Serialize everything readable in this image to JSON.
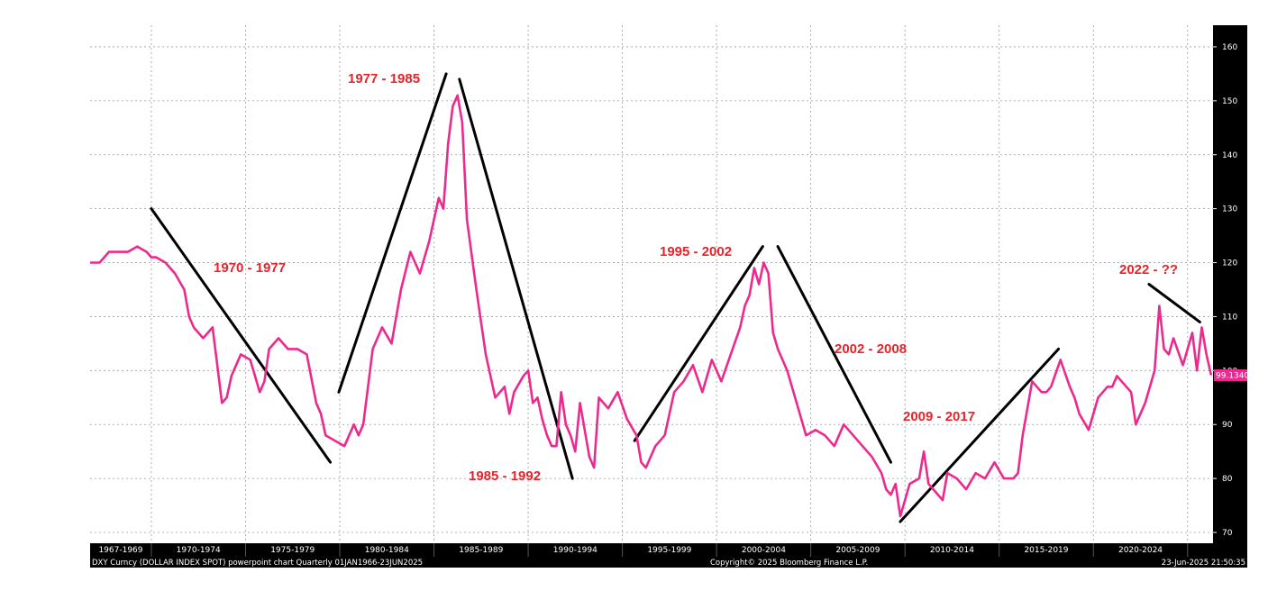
{
  "chart_data": {
    "type": "line",
    "title": "",
    "xlabel": "",
    "ylabel": "",
    "ylim": [
      68,
      164
    ],
    "xlim": [
      1966.0,
      2025.6
    ],
    "grid": true,
    "y_ticks": [
      70,
      80,
      90,
      100,
      110,
      120,
      130,
      140,
      150,
      160
    ],
    "x_tick_labels": [
      "1967-1969",
      "1970-1974",
      "1975-1979",
      "1980-1984",
      "1985-1989",
      "1990-1994",
      "1995-1999",
      "2000-2004",
      "2005-2009",
      "2010-2014",
      "2015-2019",
      "2020-2024"
    ],
    "line_color": "#ec2a8e",
    "last_value_label": "99.1340",
    "last_value": 99.134,
    "series": [
      {
        "name": "DXY Curncy (DOLLAR INDEX SPOT)",
        "x": [
          1966.0,
          1966.5,
          1967.0,
          1967.5,
          1968.0,
          1968.5,
          1969.0,
          1969.25,
          1969.5,
          1970.0,
          1970.5,
          1971.0,
          1971.25,
          1971.5,
          1972.0,
          1972.5,
          1973.0,
          1973.25,
          1973.5,
          1973.75,
          1974.0,
          1974.5,
          1975.0,
          1975.25,
          1975.5,
          1976.0,
          1976.5,
          1977.0,
          1977.5,
          1978.0,
          1978.25,
          1978.5,
          1979.0,
          1979.5,
          1980.0,
          1980.25,
          1980.5,
          1981.0,
          1981.5,
          1982.0,
          1982.5,
          1983.0,
          1983.5,
          1984.0,
          1984.5,
          1984.75,
          1985.0,
          1985.25,
          1985.5,
          1985.75,
          1986.0,
          1986.5,
          1987.0,
          1987.5,
          1988.0,
          1988.25,
          1988.5,
          1989.0,
          1989.25,
          1989.5,
          1989.75,
          1990.0,
          1990.25,
          1990.5,
          1990.75,
          1991.0,
          1991.25,
          1991.5,
          1991.75,
          1992.0,
          1992.5,
          1992.75,
          1993.0,
          1993.5,
          1994.0,
          1994.5,
          1995.0,
          1995.25,
          1995.5,
          1996.0,
          1996.5,
          1997.0,
          1997.5,
          1998.0,
          1998.5,
          1999.0,
          1999.5,
          2000.0,
          2000.5,
          2000.75,
          2001.0,
          2001.25,
          2001.5,
          2001.75,
          2002.0,
          2002.25,
          2002.5,
          2003.0,
          2003.5,
          2004.0,
          2004.5,
          2005.0,
          2005.5,
          2006.0,
          2006.5,
          2007.0,
          2007.5,
          2008.0,
          2008.25,
          2008.5,
          2008.75,
          2009.0,
          2009.25,
          2009.5,
          2010.0,
          2010.25,
          2010.5,
          2011.0,
          2011.25,
          2011.5,
          2012.0,
          2012.5,
          2013.0,
          2013.5,
          2014.0,
          2014.5,
          2015.0,
          2015.25,
          2015.5,
          2016.0,
          2016.5,
          2016.75,
          2017.0,
          2017.5,
          2018.0,
          2018.25,
          2018.5,
          2019.0,
          2019.5,
          2020.0,
          2020.25,
          2020.5,
          2021.0,
          2021.25,
          2021.5,
          2022.0,
          2022.5,
          2022.75,
          2023.0,
          2023.25,
          2023.5,
          2024.0,
          2024.25,
          2024.5,
          2024.75,
          2025.0,
          2025.25,
          2025.5
        ],
        "values": [
          120,
          120,
          122,
          122,
          122,
          123,
          122,
          121,
          121,
          120,
          118,
          115,
          110,
          108,
          106,
          108,
          94,
          95,
          99,
          101,
          103,
          102,
          96,
          98,
          104,
          106,
          104,
          104,
          103,
          94,
          92,
          88,
          87,
          86,
          90,
          88,
          90,
          104,
          108,
          105,
          115,
          122,
          118,
          124,
          132,
          130,
          142,
          149,
          151,
          146,
          128,
          115,
          103,
          95,
          97,
          92,
          96,
          99,
          100,
          94,
          95,
          91,
          88,
          86,
          86,
          96,
          90,
          88,
          85,
          94,
          84,
          82,
          95,
          93,
          96,
          91,
          88,
          83,
          82,
          86,
          88,
          96,
          98,
          101,
          96,
          102,
          98,
          103,
          108,
          112,
          114,
          119,
          116,
          120,
          118,
          107,
          104,
          100,
          94,
          88,
          89,
          88,
          86,
          90,
          88,
          86,
          84,
          81,
          78,
          77,
          79,
          73,
          76,
          79,
          80,
          85,
          79,
          77,
          76,
          81,
          80,
          78,
          81,
          80,
          83,
          80,
          80,
          81,
          88,
          98,
          96,
          96,
          97,
          102,
          97,
          95,
          92,
          89,
          95,
          97,
          97,
          99,
          97,
          96,
          90,
          94,
          100,
          112,
          104,
          103,
          106,
          101,
          104,
          107,
          100,
          108,
          103,
          99.134
        ]
      }
    ],
    "trend_annotations": [
      "1970 - 1977",
      "1977 - 1985",
      "1985 - 1992",
      "1995 - 2002",
      "2002 - 2008",
      "2009 - 2017",
      "2022 - ??"
    ],
    "trend_lines": [
      {
        "from": [
          1969.25,
          130
        ],
        "to": [
          1978.75,
          83
        ]
      },
      {
        "from": [
          1979.2,
          96
        ],
        "to": [
          1984.9,
          155
        ]
      },
      {
        "from": [
          1985.6,
          154
        ],
        "to": [
          1991.6,
          80
        ]
      },
      {
        "from": [
          1994.9,
          87
        ],
        "to": [
          2001.7,
          123
        ]
      },
      {
        "from": [
          2002.5,
          123
        ],
        "to": [
          2008.5,
          83
        ]
      },
      {
        "from": [
          2009.0,
          72
        ],
        "to": [
          2017.4,
          104
        ]
      },
      {
        "from": [
          2022.2,
          116
        ],
        "to": [
          2024.9,
          109
        ]
      }
    ]
  },
  "footer": {
    "left_text": "DXY Curncy (DOLLAR INDEX SPOT) powerpoint chart  Quarterly 01JAN1966-23JUN2025",
    "center_text": "Copyright© 2025 Bloomberg Finance L.P.",
    "right_text": "23-Jun-2025 21:50:35"
  }
}
